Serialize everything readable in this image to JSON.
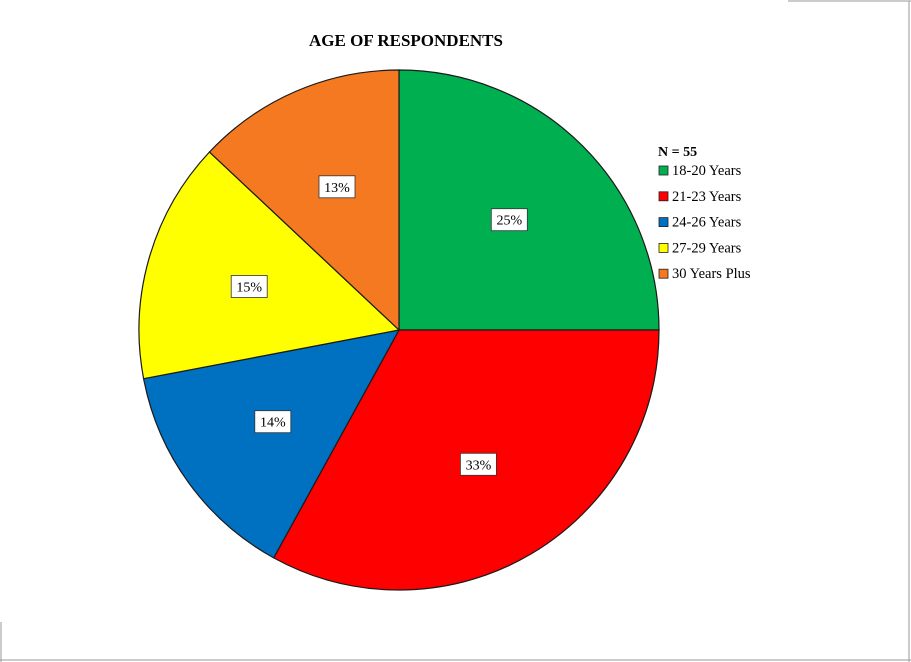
{
  "chart_data": {
    "type": "pie",
    "title": "AGE OF RESPONDENTS",
    "legend_header": "N = 55",
    "legend_position": "right",
    "slices": [
      {
        "label": "18-20 Years",
        "value": 25,
        "display": "25%",
        "color": "#00b050"
      },
      {
        "label": "21-23 Years",
        "value": 33,
        "display": "33%",
        "color": "#ff0000"
      },
      {
        "label": "24-26 Years",
        "value": 14,
        "display": "14%",
        "color": "#0070c0"
      },
      {
        "label": "27-29 Years",
        "value": 15,
        "display": "15%",
        "color": "#ffff00"
      },
      {
        "label": "30 Years Plus",
        "value": 13,
        "display": "13%",
        "color": "#f47920"
      }
    ]
  }
}
